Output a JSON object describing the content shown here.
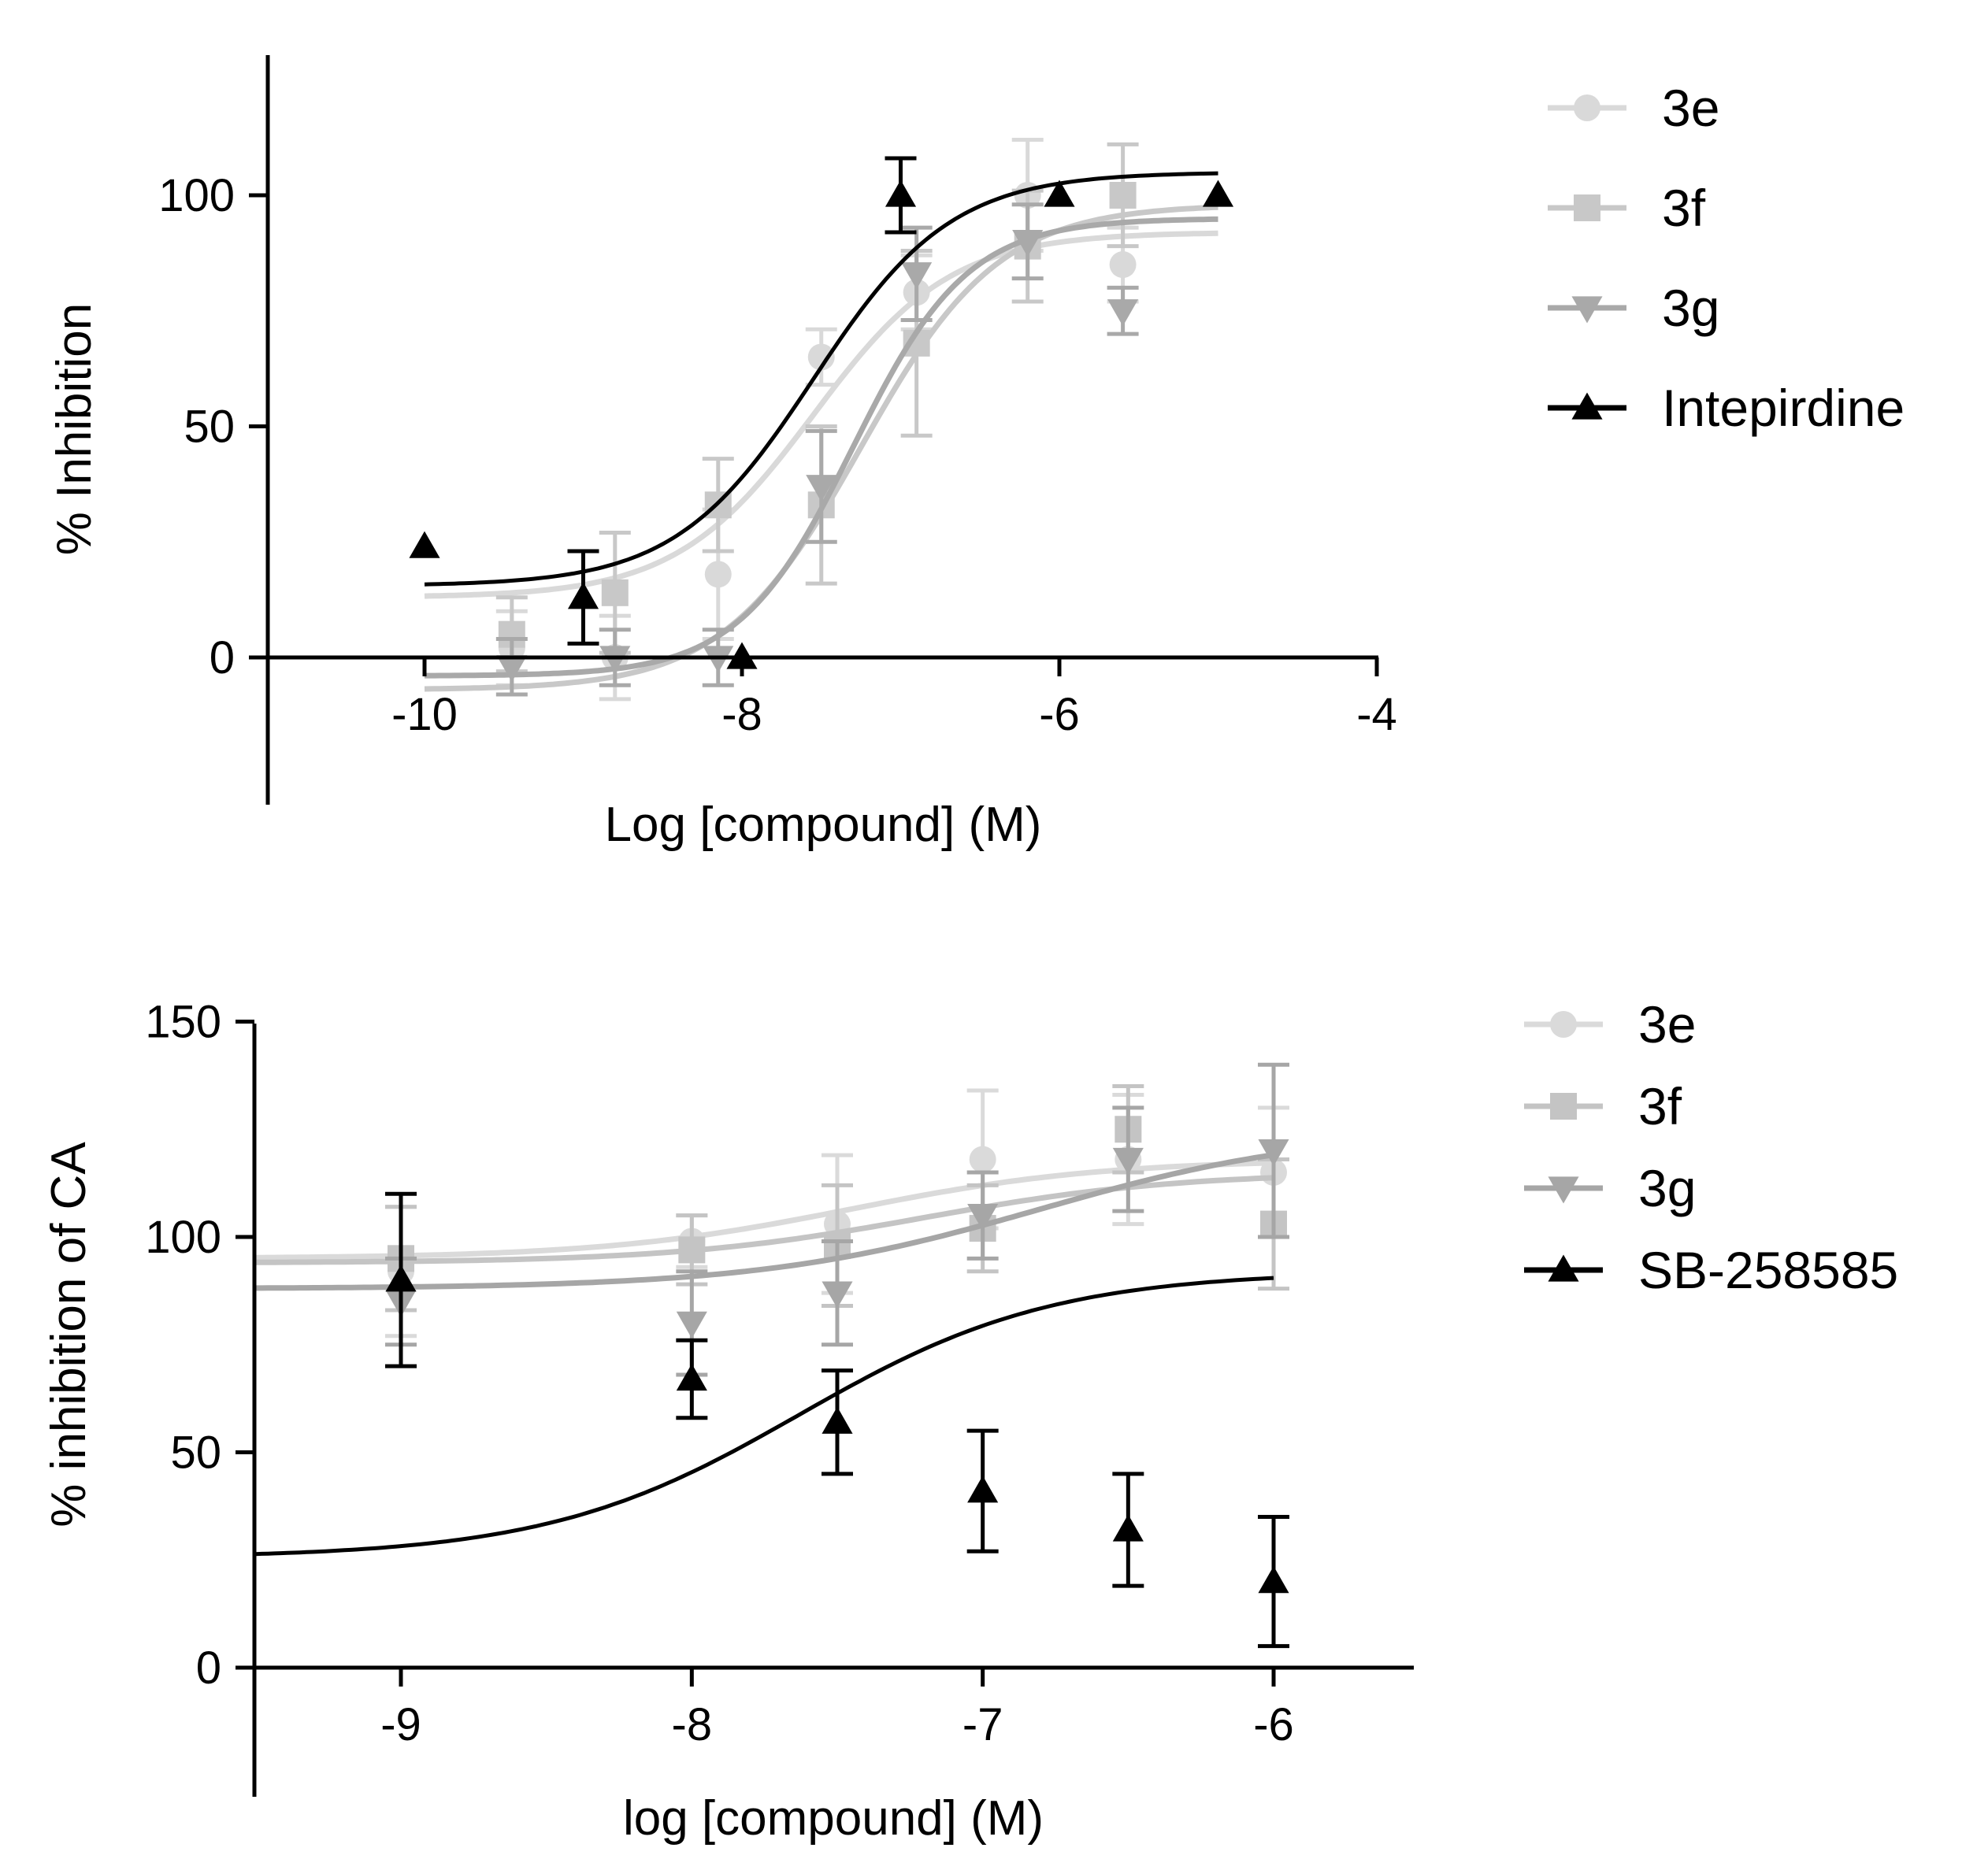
{
  "chart_data": [
    {
      "type": "line",
      "title": "",
      "xlabel": "Log [compound] (M)",
      "ylabel": "% Inhibition",
      "xlim": [
        -11.0,
        -4.0
      ],
      "ylim": [
        -30,
        130
      ],
      "xticks": [
        -10,
        -8,
        -6,
        -4
      ],
      "xtick_labels": [
        "-10",
        "-8",
        "-6",
        "-4"
      ],
      "yticks": [
        0,
        50,
        100
      ],
      "ytick_labels": [
        "0",
        "50",
        "100"
      ],
      "legend_position": "right",
      "series": [
        {
          "name": "3e",
          "marker": "circle",
          "color": "#d9d9d9",
          "x": [
            -9.45,
            -8.8,
            -8.15,
            -7.5,
            -6.9,
            -6.2,
            -5.6
          ],
          "y": [
            2,
            0,
            18,
            65,
            79,
            100,
            85
          ],
          "err": [
            8,
            9,
            14,
            6,
            8,
            12,
            8
          ],
          "fit": {
            "bottom": 13,
            "top": 92,
            "log_ec50": -7.55,
            "hill": 1.0
          }
        },
        {
          "name": "3f",
          "marker": "square",
          "color": "#c8c8c8",
          "x": [
            -9.45,
            -8.8,
            -8.15,
            -7.5,
            -6.9,
            -6.2,
            -5.6
          ],
          "y": [
            5,
            14,
            33,
            33,
            68,
            89,
            100
          ],
          "err": [
            8,
            13,
            10,
            17,
            20,
            12,
            11
          ],
          "fit": {
            "bottom": -7,
            "top": 98,
            "log_ec50": -7.25,
            "hill": 1.0
          }
        },
        {
          "name": "3g",
          "marker": "triangle-down",
          "color": "#a9a9a9",
          "x": [
            -9.45,
            -8.8,
            -8.15,
            -7.5,
            -6.9,
            -6.2,
            -5.6
          ],
          "y": [
            -2,
            0,
            0,
            37,
            83,
            90,
            75
          ],
          "err": [
            6,
            6,
            6,
            12,
            10,
            8,
            5
          ],
          "fit": {
            "bottom": -4,
            "top": 95,
            "log_ec50": -7.3,
            "hill": 1.2
          }
        },
        {
          "name": "Intepirdine",
          "marker": "triangle-up",
          "color": "#000000",
          "x": [
            -10.0,
            -9.0,
            -8.0,
            -7.0,
            -6.0,
            -5.0
          ],
          "y": [
            24,
            13,
            0,
            100,
            100,
            100
          ],
          "err": [
            0,
            10,
            0,
            8,
            0,
            0
          ],
          "fit": {
            "bottom": 15.5,
            "top": 105,
            "log_ec50": -7.55,
            "hill": 1.0
          }
        }
      ]
    },
    {
      "type": "line",
      "title": "",
      "xlabel": "log [compound] (M)",
      "ylabel": "% inhibition of CA",
      "xlim": [
        -9.5,
        -5.5
      ],
      "ylim": [
        -30,
        150
      ],
      "xticks": [
        -9,
        -8,
        -7,
        -6
      ],
      "xtick_labels": [
        "-9",
        "-8",
        "-7",
        "-6"
      ],
      "yticks": [
        0,
        50,
        100,
        150
      ],
      "ytick_labels": [
        "0",
        "50",
        "100",
        "150"
      ],
      "legend_position": "right",
      "series": [
        {
          "name": "3e",
          "marker": "circle",
          "color": "#dadada",
          "x": [
            -9.0,
            -8.0,
            -7.5,
            -7.0,
            -6.5,
            -6.0
          ],
          "y": [
            92,
            99,
            103,
            118,
            118,
            115
          ],
          "err": [
            15,
            6,
            16,
            16,
            15,
            15
          ],
          "fit": {
            "bottom": 95,
            "top": 118,
            "log_ec50": -7.45,
            "hill": 1.0
          }
        },
        {
          "name": "3f",
          "marker": "square",
          "color": "#c4c4c4",
          "x": [
            -9.0,
            -8.0,
            -7.5,
            -7.0,
            -6.5,
            -6.0
          ],
          "y": [
            95,
            97,
            98,
            102,
            125,
            103
          ],
          "err": [
            12,
            8,
            14,
            10,
            10,
            15
          ],
          "fit": {
            "bottom": 94,
            "top": 115,
            "log_ec50": -7.2,
            "hill": 1.0
          }
        },
        {
          "name": "3g",
          "marker": "triangle-down",
          "color": "#a6a6a6",
          "x": [
            -9.0,
            -8.0,
            -7.5,
            -7.0,
            -6.5,
            -6.0
          ],
          "y": [
            85,
            80,
            87,
            105,
            118,
            120
          ],
          "err": [
            10,
            12,
            12,
            10,
            12,
            20
          ],
          "fit": {
            "bottom": 88,
            "top": 125,
            "log_ec50": -6.8,
            "hill": 0.9
          }
        },
        {
          "name": "SB-258585",
          "marker": "triangle-up",
          "color": "#000000",
          "x": [
            -9.0,
            -8.0,
            -7.5,
            -7.0,
            -6.5,
            -6.0
          ],
          "y": [
            90,
            67,
            57,
            41,
            32,
            20
          ],
          "err": [
            20,
            9,
            12,
            14,
            13,
            15
          ],
          "fit": {
            "bottom": 25.5,
            "top": 92,
            "log_ec50": -7.63,
            "hill": 1.0
          }
        }
      ]
    }
  ]
}
